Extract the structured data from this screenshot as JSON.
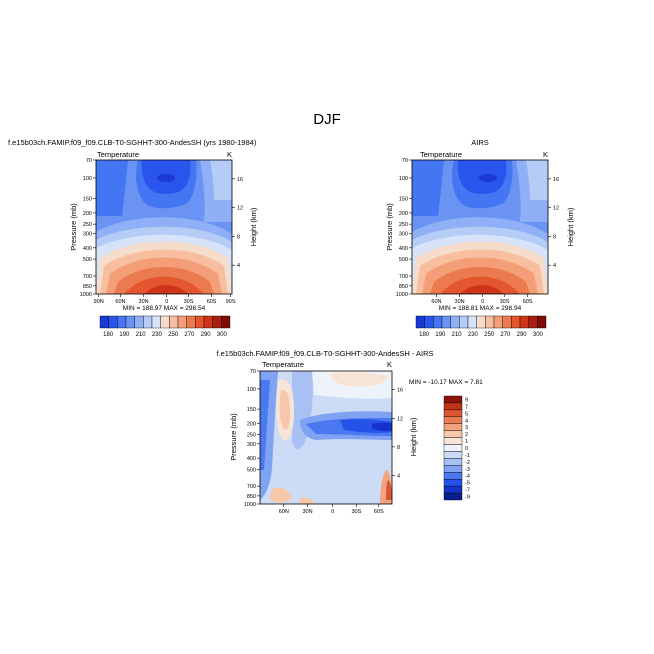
{
  "figure": {
    "title": "DJF",
    "colors": {
      "temp_levels": [
        "#1a3ad6",
        "#2a55ec",
        "#4475f2",
        "#6a93f4",
        "#8fb0f6",
        "#b5ccf7",
        "#d6e3f8",
        "#f5dccb",
        "#f7bf9f",
        "#f39e76",
        "#ec7a50",
        "#e4562e",
        "#cd3418",
        "#a91e0c",
        "#7f0c04"
      ],
      "diff_levels": [
        "#0a1f8f",
        "#1533c9",
        "#2552e8",
        "#4a78f0",
        "#7fa2f3",
        "#a9c0f5",
        "#cddcf6",
        "#eef2fa",
        "#f8e4d6",
        "#f6c7ab",
        "#f1a47e",
        "#ea7c52",
        "#db5630",
        "#bf3318",
        "#8c1508"
      ]
    }
  },
  "chart_data": [
    {
      "type": "heatmap",
      "panel": "model",
      "title": "f.e15b03ch.FAMIP.f09_f09.CLB-T0-SGHHT-300-AndesSH (yrs 1980-1984)",
      "left_label": "Temperature",
      "right_label": "K",
      "xlabel": "",
      "ylabel": "Pressure (mb)",
      "y2label": "Height (km)",
      "x_ticks": [
        "90N",
        "60N",
        "30N",
        "0",
        "30S",
        "60S",
        "90S"
      ],
      "y_ticks": [
        "70",
        "100",
        "150",
        "200",
        "250",
        "300",
        "400",
        "500",
        "700",
        "850",
        "1000"
      ],
      "height_ticks": [
        "16",
        "12",
        "8",
        "4"
      ],
      "stats": "MIN = 188.97   MAX = 298.54",
      "min": 188.97,
      "max": 298.54,
      "colorbar_labels": [
        "180",
        "190",
        "210",
        "230",
        "250",
        "270",
        "290",
        "300"
      ]
    },
    {
      "type": "heatmap",
      "panel": "obs",
      "title": "AIRS",
      "left_label": "Temperature",
      "right_label": "K",
      "xlabel": "",
      "ylabel": "Pressure (mb)",
      "y2label": "Height (km)",
      "x_ticks": [
        "60N",
        "30N",
        "0",
        "30S",
        "60S"
      ],
      "y_ticks": [
        "70",
        "100",
        "150",
        "200",
        "250",
        "300",
        "400",
        "500",
        "700",
        "850",
        "1000"
      ],
      "height_ticks": [
        "16",
        "12",
        "8",
        "4"
      ],
      "stats": "MIN = 188.81   MAX = 298.94",
      "min": 188.81,
      "max": 298.94,
      "colorbar_labels": [
        "180",
        "190",
        "210",
        "230",
        "250",
        "270",
        "290",
        "300"
      ]
    },
    {
      "type": "heatmap",
      "panel": "difference",
      "title": "f.e15b03ch.FAMIP.f09_f09.CLB-T0-SGHHT-300-AndesSH - AIRS",
      "left_label": "Temperature",
      "right_label": "K",
      "xlabel": "",
      "ylabel": "Pressure (mb)",
      "y2label": "Height (km)",
      "x_ticks": [
        "60N",
        "30N",
        "0",
        "30S",
        "60S"
      ],
      "y_ticks": [
        "70",
        "100",
        "150",
        "200",
        "250",
        "300",
        "400",
        "500",
        "700",
        "850",
        "1000"
      ],
      "height_ticks": [
        "16",
        "12",
        "8",
        "4"
      ],
      "stats": "MIN = -10.17   MAX =   7.81",
      "min": -10.17,
      "max": 7.81,
      "colorbar_labels": [
        "9",
        "7",
        "5",
        "4",
        "3",
        "2",
        "1",
        "0",
        "-1",
        "-2",
        "-3",
        "-4",
        "-5",
        "-7",
        "-9"
      ]
    }
  ]
}
